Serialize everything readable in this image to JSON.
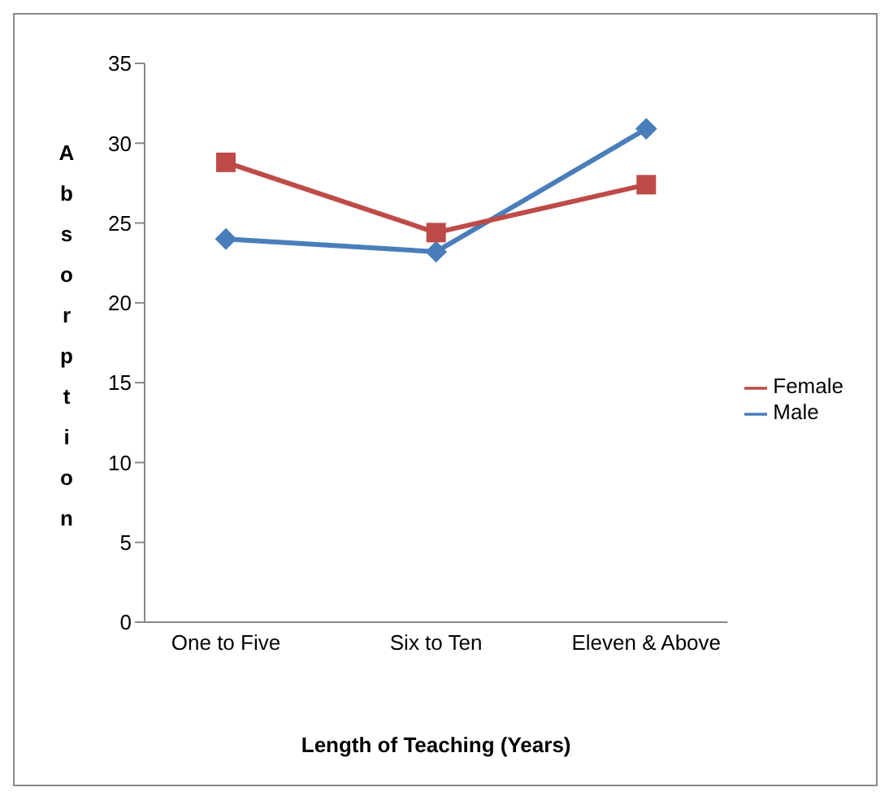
{
  "chart_data": {
    "type": "line",
    "xlabel": "Length of Teaching (Years)",
    "ylabel": "Absorption",
    "categories": [
      "One to Five",
      "Six to Ten",
      "Eleven & Above"
    ],
    "series": [
      {
        "name": "Male",
        "color": "#4a7ebb",
        "values": [
          24,
          23.2,
          30.9
        ],
        "marker": "diamond"
      },
      {
        "name": "Female",
        "color": "#be4b48",
        "values": [
          28.8,
          24.4,
          27.4
        ],
        "marker": "square"
      }
    ],
    "ylim": [
      0,
      35
    ],
    "yticks": [
      0,
      5,
      10,
      15,
      20,
      25,
      30,
      35
    ],
    "grid": false,
    "legend": "right",
    "line_style": "solid"
  }
}
